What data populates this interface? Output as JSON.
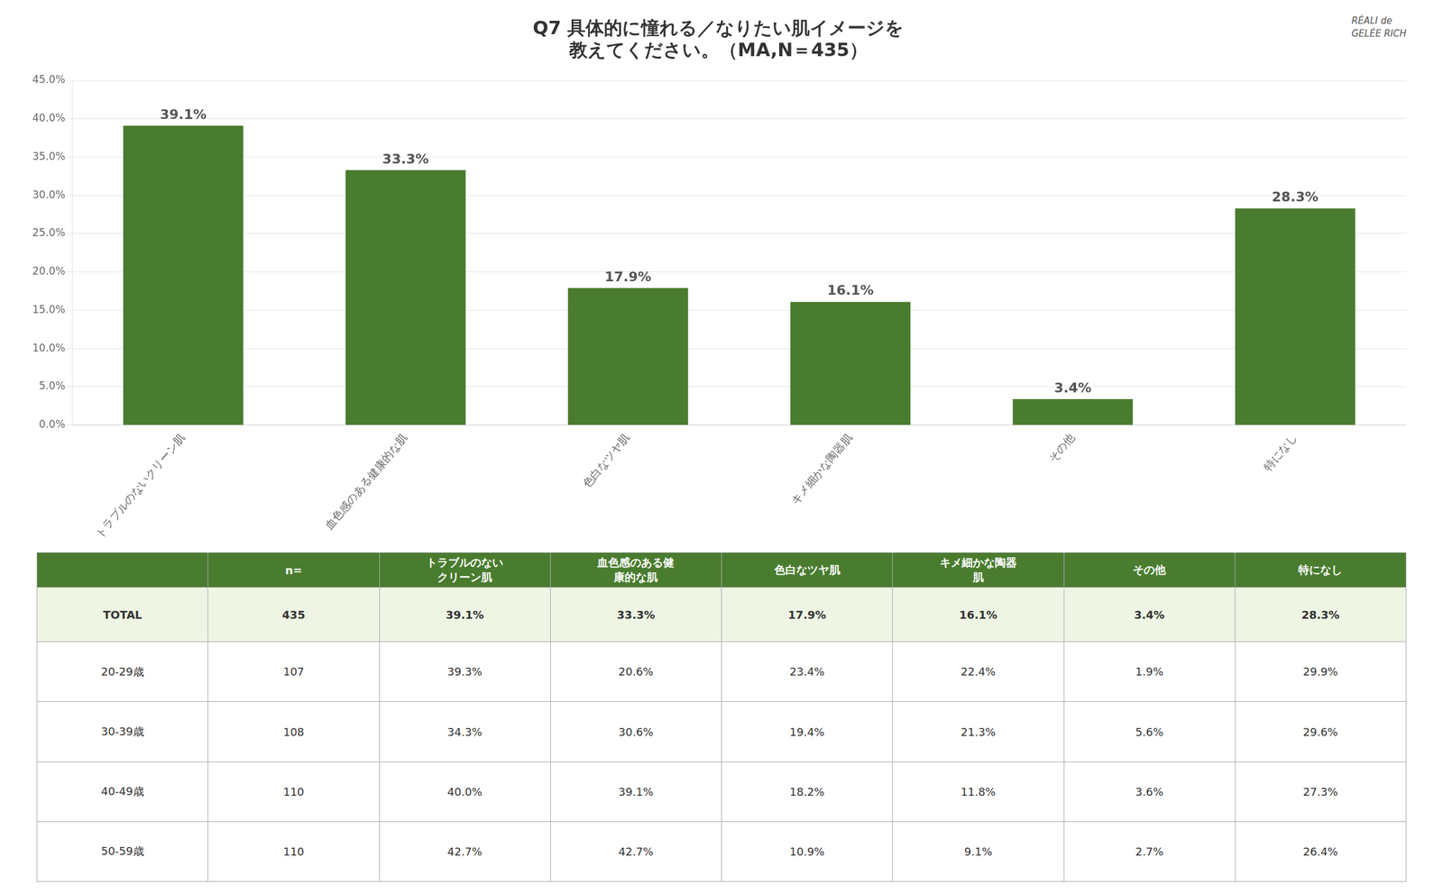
{
  "chart_data": {
    "type": "bar",
    "title": "Q7 具体的に憧れる／なりたい肌イメージを\n教えてください。（MA,N＝435）",
    "categories": [
      "トラブルのないクリーン肌",
      "血色感のある健康的な肌",
      "色白なツヤ肌",
      "キメ細かな陶器肌",
      "その他",
      "特になし"
    ],
    "values": [
      39.1,
      33.3,
      17.9,
      16.1,
      3.4,
      28.3
    ],
    "value_labels": [
      "39.1%",
      "33.3%",
      "17.9%",
      "16.1%",
      "3.4%",
      "28.3%"
    ],
    "data_labels": true,
    "color": "#4a7c2f",
    "ylim": [
      0,
      45
    ],
    "yticks": [
      {
        "value": 0.0,
        "label": "0.0%"
      },
      {
        "value": 5.0,
        "label": "5.0%"
      },
      {
        "value": 10.0,
        "label": "10.0%"
      },
      {
        "value": 15.0,
        "label": "15.0%"
      },
      {
        "value": 20.0,
        "label": "20.0%"
      },
      {
        "value": 25.0,
        "label": "25.0%"
      },
      {
        "value": 30.0,
        "label": "30.0%"
      },
      {
        "value": 35.0,
        "label": "35.0%"
      },
      {
        "value": 40.0,
        "label": "40.0%"
      },
      {
        "value": 45.0,
        "label": "45.0%"
      }
    ],
    "grid": true,
    "annotations": [
      "RÉALI de",
      "GELÉE RICH"
    ],
    "table": {
      "headers": [
        null,
        "n=",
        "トラブルのない\nクリーン肌",
        "血色感のある健\n康的な肌",
        "色白なツヤ肌",
        "キメ細かな陶器\n肌",
        "その他",
        "特になし"
      ],
      "rows": [
        [
          "TOTAL",
          "435",
          "39.1%",
          "33.3%",
          "17.9%",
          "16.1%",
          "3.4%",
          "28.3%"
        ],
        [
          "20-29歳",
          "107",
          "39.3%",
          "20.6%",
          "23.4%",
          "22.4%",
          "1.9%",
          "29.9%"
        ],
        [
          "30-39歳",
          "108",
          "34.3%",
          "30.6%",
          "19.4%",
          "21.3%",
          "5.6%",
          "29.6%"
        ],
        [
          "40-49歳",
          "110",
          "40.0%",
          "39.1%",
          "18.2%",
          "11.8%",
          "3.6%",
          "27.3%"
        ],
        [
          "50-59歳",
          "110",
          "42.7%",
          "42.7%",
          "10.9%",
          "9.1%",
          "2.7%",
          "26.4%"
        ]
      ]
    }
  }
}
